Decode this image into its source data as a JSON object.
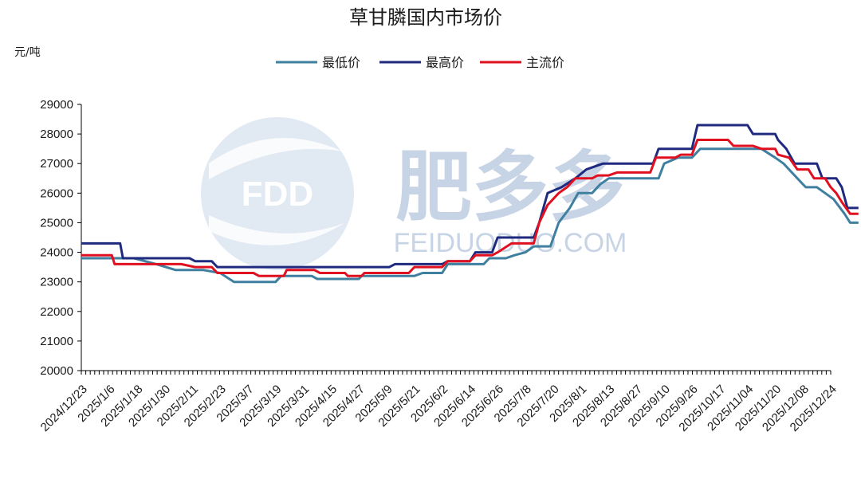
{
  "chart_data": {
    "type": "line",
    "title": "草甘膦国内市场价",
    "unit_label": "元/吨",
    "ylim": [
      20000,
      29000
    ],
    "yticks": [
      20000,
      21000,
      22000,
      23000,
      24000,
      25000,
      26000,
      27000,
      28000,
      29000
    ],
    "x_tick_labels": [
      "2024/12/23",
      "2025/1/6",
      "2025/1/18",
      "2025/1/30",
      "2025/2/11",
      "2025/2/23",
      "2025/3/7",
      "2025/3/19",
      "2025/3/31",
      "2025/4/15",
      "2025/4/27",
      "2025/5/9",
      "2025/5/21",
      "2025/6/2",
      "2025/6/14",
      "2025/6/26",
      "2025/7/8",
      "2025/7/20",
      "2025/8/1",
      "2025/8/13",
      "2025/8/27",
      "2025/9/10",
      "2025/9/26",
      "2025/10/17",
      "2025/11/04",
      "2025/11/20",
      "2025/12/08",
      "2025/12/24"
    ],
    "grid": false,
    "legend_position": "top-center",
    "watermark": {
      "logo_text": "FDD",
      "brand_text": "肥多多",
      "site_text": "FEIDUODUO.COM"
    },
    "series": [
      {
        "name": "最低价",
        "color": "#3f7f9f",
        "points": [
          [
            0,
            23800
          ],
          [
            1.9,
            23800
          ],
          [
            2.7,
            23600
          ],
          [
            3.4,
            23400
          ],
          [
            4.4,
            23400
          ],
          [
            5,
            23300
          ],
          [
            5.5,
            23000
          ],
          [
            7,
            23000
          ],
          [
            7.2,
            23200
          ],
          [
            8.3,
            23200
          ],
          [
            8.5,
            23100
          ],
          [
            10,
            23100
          ],
          [
            10.1,
            23200
          ],
          [
            12,
            23200
          ],
          [
            12.3,
            23300
          ],
          [
            13,
            23300
          ],
          [
            13.2,
            23600
          ],
          [
            14.5,
            23600
          ],
          [
            14.7,
            23800
          ],
          [
            15.3,
            23800
          ],
          [
            15.6,
            23900
          ],
          [
            16,
            24000
          ],
          [
            16.3,
            24200
          ],
          [
            16.9,
            24200
          ],
          [
            17.2,
            25000
          ],
          [
            17.6,
            25500
          ],
          [
            17.9,
            26000
          ],
          [
            18.4,
            26000
          ],
          [
            18.7,
            26300
          ],
          [
            19,
            26500
          ],
          [
            20.8,
            26500
          ],
          [
            21,
            27000
          ],
          [
            21.5,
            27200
          ],
          [
            22,
            27200
          ],
          [
            22.3,
            27500
          ],
          [
            24.5,
            27500
          ],
          [
            25,
            27200
          ],
          [
            25.3,
            27000
          ],
          [
            25.8,
            26500
          ],
          [
            26.1,
            26200
          ],
          [
            26.5,
            26200
          ],
          [
            26.8,
            26000
          ],
          [
            27.1,
            25800
          ],
          [
            27.5,
            25300
          ],
          [
            27.7,
            25000
          ],
          [
            28,
            25000
          ]
        ]
      },
      {
        "name": "最高价",
        "color": "#1f2a7f",
        "points": [
          [
            0,
            24300
          ],
          [
            1.4,
            24300
          ],
          [
            1.5,
            23800
          ],
          [
            3.9,
            23800
          ],
          [
            4.1,
            23700
          ],
          [
            4.7,
            23700
          ],
          [
            4.9,
            23500
          ],
          [
            11.1,
            23500
          ],
          [
            11.3,
            23600
          ],
          [
            13,
            23600
          ],
          [
            13.2,
            23700
          ],
          [
            14,
            23700
          ],
          [
            14.2,
            24000
          ],
          [
            14.8,
            24000
          ],
          [
            15,
            24500
          ],
          [
            16.3,
            24500
          ],
          [
            16.5,
            25000
          ],
          [
            16.8,
            26000
          ],
          [
            17.3,
            26200
          ],
          [
            17.8,
            26500
          ],
          [
            18.2,
            26800
          ],
          [
            18.8,
            27000
          ],
          [
            20.6,
            27000
          ],
          [
            20.8,
            27500
          ],
          [
            22,
            27500
          ],
          [
            22.2,
            28300
          ],
          [
            24,
            28300
          ],
          [
            24.2,
            28000
          ],
          [
            25,
            28000
          ],
          [
            25.1,
            27800
          ],
          [
            25.4,
            27500
          ],
          [
            25.7,
            27000
          ],
          [
            26.5,
            27000
          ],
          [
            26.7,
            26500
          ],
          [
            27.2,
            26500
          ],
          [
            27.4,
            26200
          ],
          [
            27.6,
            25500
          ],
          [
            28,
            25500
          ]
        ]
      },
      {
        "name": "主流价",
        "color": "#e01020",
        "points": [
          [
            0,
            23900
          ],
          [
            1.1,
            23900
          ],
          [
            1.2,
            23600
          ],
          [
            3.6,
            23600
          ],
          [
            4.1,
            23500
          ],
          [
            4.7,
            23500
          ],
          [
            4.9,
            23300
          ],
          [
            6.2,
            23300
          ],
          [
            6.4,
            23200
          ],
          [
            7.3,
            23200
          ],
          [
            7.4,
            23400
          ],
          [
            8.4,
            23400
          ],
          [
            8.6,
            23300
          ],
          [
            9.5,
            23300
          ],
          [
            9.6,
            23200
          ],
          [
            10.1,
            23200
          ],
          [
            10.2,
            23300
          ],
          [
            11.8,
            23300
          ],
          [
            12,
            23500
          ],
          [
            13,
            23500
          ],
          [
            13.2,
            23700
          ],
          [
            14,
            23700
          ],
          [
            14.2,
            23900
          ],
          [
            14.8,
            23900
          ],
          [
            15,
            24000
          ],
          [
            15.5,
            24300
          ],
          [
            16.3,
            24300
          ],
          [
            16.5,
            25000
          ],
          [
            16.8,
            25600
          ],
          [
            17.2,
            26000
          ],
          [
            17.5,
            26200
          ],
          [
            17.8,
            26500
          ],
          [
            18.4,
            26500
          ],
          [
            18.6,
            26600
          ],
          [
            19,
            26600
          ],
          [
            19.3,
            26700
          ],
          [
            20.5,
            26700
          ],
          [
            20.7,
            27200
          ],
          [
            21.4,
            27200
          ],
          [
            21.6,
            27300
          ],
          [
            22,
            27300
          ],
          [
            22.2,
            27800
          ],
          [
            23.3,
            27800
          ],
          [
            23.5,
            27600
          ],
          [
            24.2,
            27600
          ],
          [
            24.5,
            27500
          ],
          [
            25,
            27500
          ],
          [
            25.1,
            27300
          ],
          [
            25.5,
            27200
          ],
          [
            25.8,
            26800
          ],
          [
            26.2,
            26800
          ],
          [
            26.4,
            26500
          ],
          [
            26.8,
            26500
          ],
          [
            27,
            26200
          ],
          [
            27.2,
            26000
          ],
          [
            27.4,
            25700
          ],
          [
            27.7,
            25300
          ],
          [
            28,
            25300
          ]
        ]
      }
    ]
  }
}
